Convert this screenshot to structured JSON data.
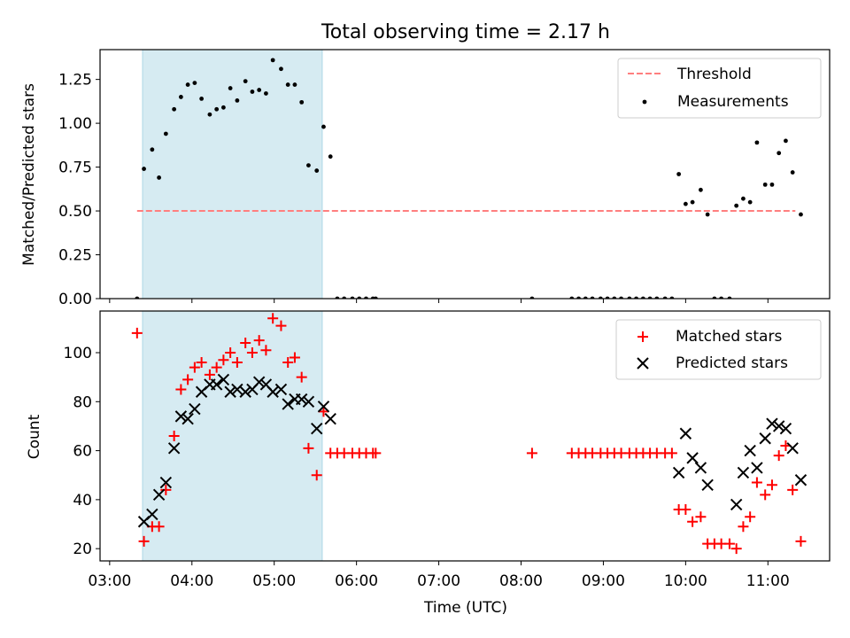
{
  "figure": {
    "title": "Total observing time = 2.17 h",
    "xlabel": "Time (UTC)",
    "x_tick_labels": [
      "03:00",
      "04:00",
      "05:00",
      "06:00",
      "07:00",
      "08:00",
      "09:00",
      "10:00",
      "11:00"
    ],
    "shaded_span": {
      "start": "03:24",
      "end": "05:35",
      "color": "#add8e6"
    }
  },
  "chart_data": [
    {
      "type": "scatter",
      "ylabel": "Matched/Predicted stars",
      "ylim": [
        0,
        1.42
      ],
      "y_tick_labels": [
        "0.00",
        "0.25",
        "0.50",
        "0.75",
        "1.00",
        "1.25"
      ],
      "xlim": [
        "02:53",
        "11:45"
      ],
      "legend": {
        "placement": "top-right",
        "entries": [
          "Threshold",
          "Measurements"
        ]
      },
      "threshold": {
        "name": "Threshold",
        "y": 0.5,
        "x_start": "03:20",
        "x_end": "11:20",
        "color": "#ff7f7f",
        "style": "dashed"
      },
      "series": [
        {
          "name": "Measurements",
          "color": "#000000",
          "marker": "dot",
          "points": [
            [
              "03:20",
              0
            ],
            [
              "03:25",
              0.74
            ],
            [
              "03:31",
              0.85
            ],
            [
              "03:36",
              0.69
            ],
            [
              "03:41",
              0.94
            ],
            [
              "03:47",
              1.08
            ],
            [
              "03:52",
              1.15
            ],
            [
              "03:57",
              1.22
            ],
            [
              "04:02",
              1.23
            ],
            [
              "04:07",
              1.14
            ],
            [
              "04:13",
              1.05
            ],
            [
              "04:18",
              1.08
            ],
            [
              "04:23",
              1.09
            ],
            [
              "04:28",
              1.2
            ],
            [
              "04:33",
              1.13
            ],
            [
              "04:39",
              1.24
            ],
            [
              "04:44",
              1.18
            ],
            [
              "04:49",
              1.19
            ],
            [
              "04:54",
              1.17
            ],
            [
              "04:59",
              1.36
            ],
            [
              "05:05",
              1.31
            ],
            [
              "05:10",
              1.22
            ],
            [
              "05:15",
              1.22
            ],
            [
              "05:20",
              1.12
            ],
            [
              "05:25",
              0.76
            ],
            [
              "05:31",
              0.73
            ],
            [
              "05:36",
              0.98
            ],
            [
              "05:41",
              0.81
            ],
            [
              "05:46",
              0
            ],
            [
              "05:51",
              0
            ],
            [
              "05:57",
              0
            ],
            [
              "06:02",
              0
            ],
            [
              "06:07",
              0
            ],
            [
              "06:12",
              0
            ],
            [
              "06:14",
              0
            ],
            [
              "08:08",
              0
            ],
            [
              "08:37",
              0
            ],
            [
              "08:42",
              0
            ],
            [
              "08:47",
              0
            ],
            [
              "08:52",
              0
            ],
            [
              "08:58",
              0
            ],
            [
              "09:03",
              0
            ],
            [
              "09:08",
              0
            ],
            [
              "09:13",
              0
            ],
            [
              "09:19",
              0
            ],
            [
              "09:24",
              0
            ],
            [
              "09:29",
              0
            ],
            [
              "09:34",
              0
            ],
            [
              "09:39",
              0
            ],
            [
              "09:45",
              0
            ],
            [
              "09:50",
              0
            ],
            [
              "09:55",
              0.71
            ],
            [
              "10:00",
              0.54
            ],
            [
              "10:05",
              0.55
            ],
            [
              "10:11",
              0.62
            ],
            [
              "10:16",
              0.48
            ],
            [
              "10:21",
              0
            ],
            [
              "10:26",
              0
            ],
            [
              "10:32",
              0
            ],
            [
              "10:37",
              0.53
            ],
            [
              "10:42",
              0.57
            ],
            [
              "10:47",
              0.55
            ],
            [
              "10:52",
              0.89
            ],
            [
              "10:58",
              0.65
            ],
            [
              "11:03",
              0.65
            ],
            [
              "11:08",
              0.83
            ],
            [
              "11:13",
              0.9
            ],
            [
              "11:18",
              0.72
            ],
            [
              "11:24",
              0.48
            ]
          ]
        }
      ]
    },
    {
      "type": "scatter",
      "ylabel": "Count",
      "ylim": [
        15,
        117
      ],
      "y_tick_labels": [
        "20",
        "40",
        "60",
        "80",
        "100"
      ],
      "xlim": [
        "02:53",
        "11:45"
      ],
      "legend": {
        "placement": "top-right",
        "entries": [
          "Matched stars",
          "Predicted stars"
        ]
      },
      "series": [
        {
          "name": "Matched stars",
          "color": "#ff0000",
          "marker": "plus",
          "points": [
            [
              "03:20",
              108
            ],
            [
              "03:25",
              23
            ],
            [
              "03:31",
              29
            ],
            [
              "03:36",
              29
            ],
            [
              "03:41",
              44
            ],
            [
              "03:47",
              66
            ],
            [
              "03:52",
              85
            ],
            [
              "03:57",
              89
            ],
            [
              "04:02",
              94
            ],
            [
              "04:07",
              96
            ],
            [
              "04:13",
              91
            ],
            [
              "04:18",
              94
            ],
            [
              "04:23",
              97
            ],
            [
              "04:28",
              100
            ],
            [
              "04:33",
              96
            ],
            [
              "04:39",
              104
            ],
            [
              "04:44",
              100
            ],
            [
              "04:49",
              105
            ],
            [
              "04:54",
              101
            ],
            [
              "04:59",
              114
            ],
            [
              "05:05",
              111
            ],
            [
              "05:10",
              96
            ],
            [
              "05:15",
              98
            ],
            [
              "05:20",
              90
            ],
            [
              "05:25",
              61
            ],
            [
              "05:31",
              50
            ],
            [
              "05:36",
              76
            ],
            [
              "05:41",
              59
            ],
            [
              "05:46",
              59
            ],
            [
              "05:51",
              59
            ],
            [
              "05:57",
              59
            ],
            [
              "06:02",
              59
            ],
            [
              "06:07",
              59
            ],
            [
              "06:12",
              59
            ],
            [
              "06:14",
              59
            ],
            [
              "08:08",
              59
            ],
            [
              "08:37",
              59
            ],
            [
              "08:42",
              59
            ],
            [
              "08:47",
              59
            ],
            [
              "08:52",
              59
            ],
            [
              "08:58",
              59
            ],
            [
              "09:03",
              59
            ],
            [
              "09:08",
              59
            ],
            [
              "09:13",
              59
            ],
            [
              "09:19",
              59
            ],
            [
              "09:24",
              59
            ],
            [
              "09:29",
              59
            ],
            [
              "09:34",
              59
            ],
            [
              "09:39",
              59
            ],
            [
              "09:45",
              59
            ],
            [
              "09:50",
              59
            ],
            [
              "09:55",
              36
            ],
            [
              "10:00",
              36
            ],
            [
              "10:05",
              31
            ],
            [
              "10:11",
              33
            ],
            [
              "10:16",
              22
            ],
            [
              "10:21",
              22
            ],
            [
              "10:26",
              22
            ],
            [
              "10:32",
              22
            ],
            [
              "10:37",
              20
            ],
            [
              "10:42",
              29
            ],
            [
              "10:47",
              33
            ],
            [
              "10:52",
              47
            ],
            [
              "10:58",
              42
            ],
            [
              "11:03",
              46
            ],
            [
              "11:08",
              58
            ],
            [
              "11:13",
              62
            ],
            [
              "11:18",
              44
            ],
            [
              "11:24",
              23
            ]
          ]
        },
        {
          "name": "Predicted stars",
          "color": "#000000",
          "marker": "x",
          "points": [
            [
              "03:25",
              31
            ],
            [
              "03:31",
              34
            ],
            [
              "03:36",
              42
            ],
            [
              "03:41",
              47
            ],
            [
              "03:47",
              61
            ],
            [
              "03:52",
              74
            ],
            [
              "03:57",
              73
            ],
            [
              "04:02",
              77
            ],
            [
              "04:07",
              84
            ],
            [
              "04:13",
              87
            ],
            [
              "04:18",
              87
            ],
            [
              "04:23",
              89
            ],
            [
              "04:28",
              84
            ],
            [
              "04:33",
              85
            ],
            [
              "04:39",
              84
            ],
            [
              "04:44",
              85
            ],
            [
              "04:49",
              88
            ],
            [
              "04:54",
              87
            ],
            [
              "04:59",
              84
            ],
            [
              "05:05",
              85
            ],
            [
              "05:10",
              79
            ],
            [
              "05:15",
              81
            ],
            [
              "05:20",
              81
            ],
            [
              "05:25",
              80
            ],
            [
              "05:31",
              69
            ],
            [
              "05:36",
              78
            ],
            [
              "05:41",
              73
            ],
            [
              "09:55",
              51
            ],
            [
              "10:00",
              67
            ],
            [
              "10:05",
              57
            ],
            [
              "10:11",
              53
            ],
            [
              "10:16",
              46
            ],
            [
              "10:37",
              38
            ],
            [
              "10:42",
              51
            ],
            [
              "10:47",
              60
            ],
            [
              "10:52",
              53
            ],
            [
              "10:58",
              65
            ],
            [
              "11:03",
              71
            ],
            [
              "11:08",
              70
            ],
            [
              "11:13",
              69
            ],
            [
              "11:18",
              61
            ],
            [
              "11:24",
              48
            ]
          ]
        }
      ]
    }
  ]
}
